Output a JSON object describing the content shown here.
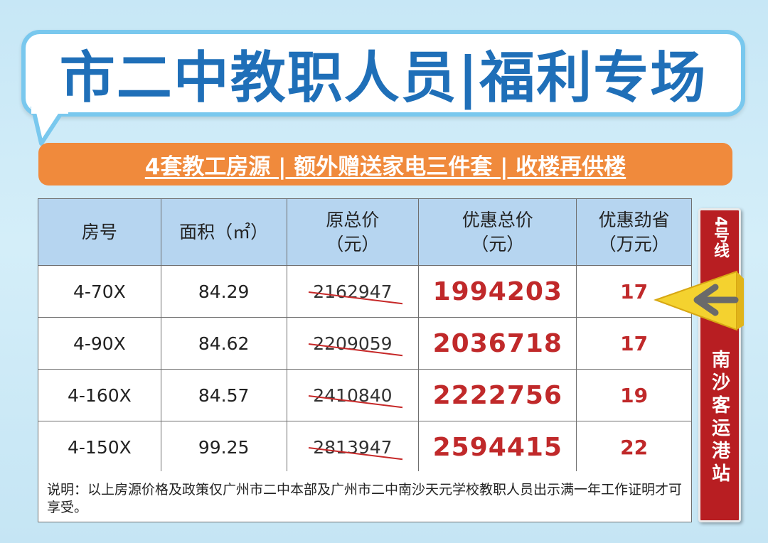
{
  "title": "市二中教职人员|福利专场",
  "subtitle": "4套教工房源 | 额外赠送家电三件套 | 收楼再供楼",
  "table": {
    "headers": [
      {
        "line1": "房号",
        "line2": ""
      },
      {
        "line1": "面积（㎡）",
        "line2": ""
      },
      {
        "line1": "原总价",
        "line2": "（元）"
      },
      {
        "line1": "优惠总价",
        "line2": "（元）"
      },
      {
        "line1": "优惠劲省",
        "line2": "（万元）"
      }
    ],
    "rows": [
      {
        "room": "4-70X",
        "area": "84.29",
        "original": "2162947",
        "discounted": "1994203",
        "saving": "17"
      },
      {
        "room": "4-90X",
        "area": "84.62",
        "original": "2209059",
        "discounted": "2036718",
        "saving": "17"
      },
      {
        "room": "4-160X",
        "area": "84.57",
        "original": "2410840",
        "discounted": "2222756",
        "saving": "19"
      },
      {
        "room": "4-150X",
        "area": "99.25",
        "original": "2813947",
        "discounted": "2594415",
        "saving": "22"
      }
    ]
  },
  "note": "说明：以上房源价格及政策仅广州市二中本部及广州市二中南沙天元学校教职人员出示满一年工作证明才可享受。",
  "sign": {
    "line_label": "4号线",
    "station_label": "南沙客运港站",
    "arrow_icon": "left-arrow-icon"
  },
  "colors": {
    "title": "#1f6fb8",
    "banner": "#f08a3c",
    "header_bg": "#b6d5f0",
    "accent_red": "#c0292a",
    "sign_red": "#b81e22",
    "arrow_yellow": "#f4d22f"
  }
}
